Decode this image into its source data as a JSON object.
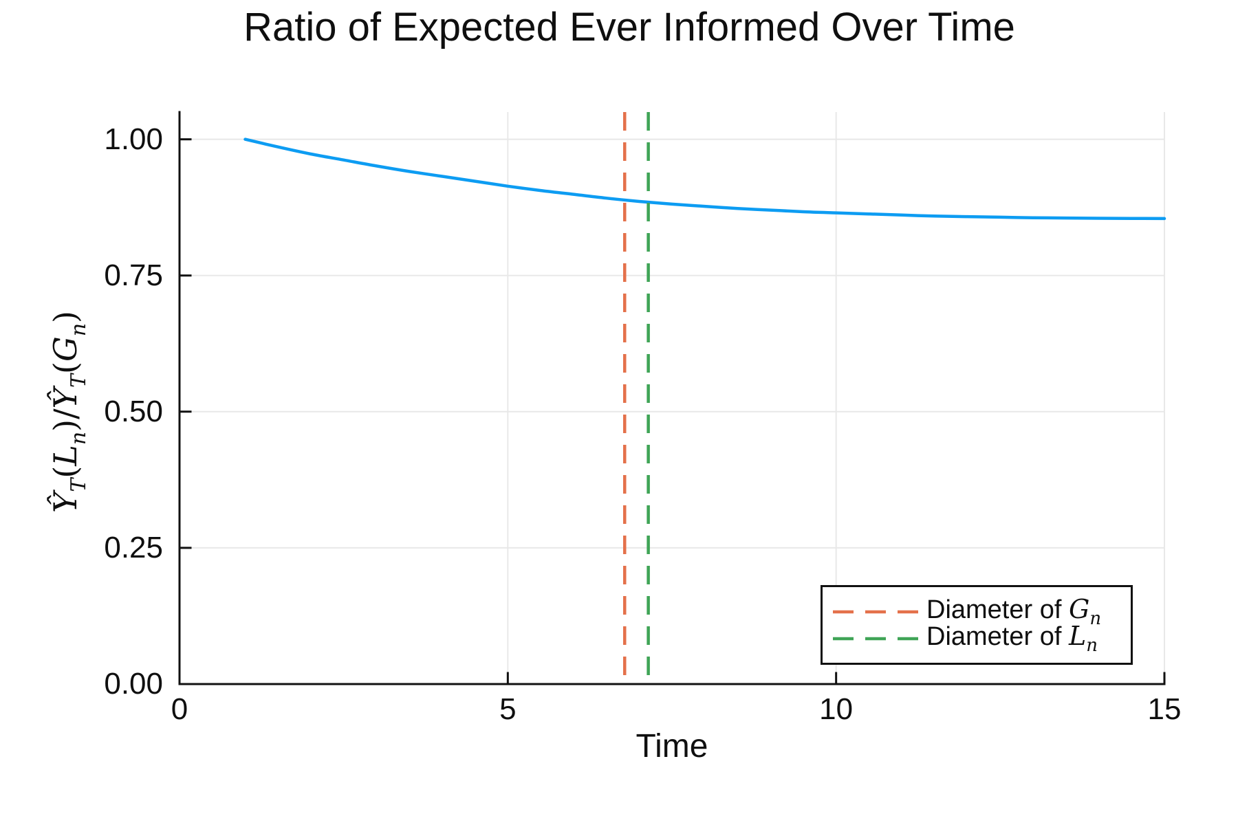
{
  "figure": {
    "background": "#FFFFFF"
  },
  "colors": {
    "axis": "#111111",
    "grid": "#E8E8E8",
    "text": "#0F0F0F",
    "curve_blue": "#0D9CF2",
    "vline_orange": "#E4714B",
    "vline_green": "#3FA456"
  },
  "chart_data": {
    "type": "line",
    "title": "Ratio of Expected Ever Informed Over Time",
    "xlabel": "Time",
    "ylabel": "Ŷ_T(L_n)/Ŷ_T(G_n)",
    "xlim": [
      0,
      15
    ],
    "ylim": [
      0,
      1.05
    ],
    "grid": true,
    "legend_position": "bottom-right",
    "xticks": {
      "values": [
        0,
        5,
        10,
        15
      ],
      "labels": [
        "0",
        "5",
        "10",
        "15"
      ]
    },
    "yticks": {
      "values": [
        0,
        0.25,
        0.5,
        0.75,
        1.0
      ],
      "labels": [
        "0.00",
        "0.25",
        "0.50",
        "0.75",
        "1.00"
      ]
    },
    "series": [
      {
        "color": "#0D9CF2",
        "style": "solid",
        "x": [
          1,
          1.5,
          2,
          2.5,
          3,
          3.5,
          4,
          4.5,
          5,
          5.5,
          6,
          6.5,
          7,
          7.5,
          8,
          8.5,
          9,
          9.5,
          10,
          10.5,
          11,
          11.5,
          12,
          12.5,
          13,
          13.5,
          14,
          14.5,
          15
        ],
        "y": [
          1.0,
          0.986,
          0.973,
          0.962,
          0.951,
          0.941,
          0.932,
          0.923,
          0.914,
          0.906,
          0.899,
          0.892,
          0.886,
          0.881,
          0.877,
          0.873,
          0.87,
          0.867,
          0.865,
          0.863,
          0.861,
          0.859,
          0.858,
          0.857,
          0.856,
          0.8555,
          0.855,
          0.8548,
          0.8545
        ]
      }
    ],
    "vlines": [
      {
        "label": "Diameter of G_n",
        "x": 6.78,
        "color": "#E4714B",
        "style": "dashed"
      },
      {
        "label": "Diameter of L_n",
        "x": 7.14,
        "color": "#3FA456",
        "style": "dashed"
      }
    ]
  },
  "legend": {
    "items": [
      {
        "prefix": "Diameter of ",
        "math": "G",
        "sub": "n"
      },
      {
        "prefix": "Diameter of ",
        "math": "L",
        "sub": "n"
      }
    ]
  },
  "ylabel_segments": [
    {
      "t": "Ŷ",
      "s": "it"
    },
    {
      "t": "T",
      "s": "sub"
    },
    {
      "t": "(",
      "s": "up"
    },
    {
      "t": "L",
      "s": "it"
    },
    {
      "t": "n",
      "s": "sub"
    },
    {
      "t": ")/",
      "s": "up"
    },
    {
      "t": "Ŷ",
      "s": "it"
    },
    {
      "t": "T",
      "s": "sub"
    },
    {
      "t": "(",
      "s": "up"
    },
    {
      "t": "G",
      "s": "it"
    },
    {
      "t": "n",
      "s": "sub"
    },
    {
      "t": ")",
      "s": "up"
    }
  ]
}
